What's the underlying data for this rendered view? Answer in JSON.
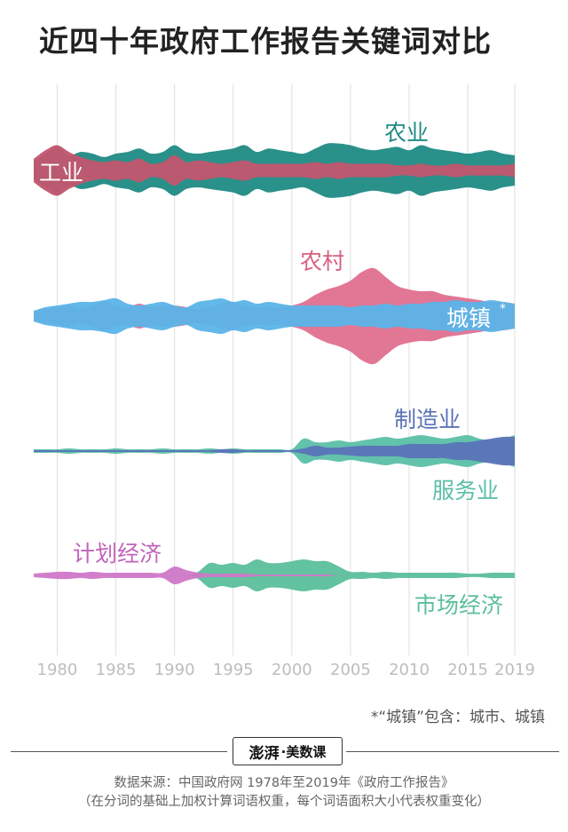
{
  "title": "近四十年政府工作报告关键词对比",
  "note": "*“城镇”包含：城市、城镇",
  "logo": {
    "mark": "澎湃",
    "sub": "·美数课"
  },
  "source": {
    "line1": "数据来源：中国政府网 1978年至2019年《政府工作报告》",
    "line2": "（在分词的基础上加权计算词语权重，每个词语面积大小代表权重变化）"
  },
  "chart_data": {
    "type": "area",
    "title": "近四十年政府工作报告关键词对比",
    "x": [
      1978,
      1979,
      1980,
      1981,
      1982,
      1983,
      1984,
      1985,
      1986,
      1987,
      1988,
      1989,
      1990,
      1991,
      1992,
      1993,
      1994,
      1995,
      1996,
      1997,
      1998,
      1999,
      2000,
      2001,
      2002,
      2003,
      2004,
      2005,
      2006,
      2007,
      2008,
      2009,
      2010,
      2011,
      2012,
      2013,
      2014,
      2015,
      2016,
      2017,
      2018,
      2019
    ],
    "x_ticks": [
      1980,
      1985,
      1990,
      1995,
      2000,
      2005,
      2010,
      2015,
      2019
    ],
    "groups": [
      {
        "series": [
          {
            "name": "农业",
            "color": "#1f8a84",
            "values": [
              10,
              20,
              28,
              18,
              22,
              20,
              16,
              20,
              22,
              26,
              20,
              22,
              30,
              22,
              20,
              22,
              24,
              26,
              30,
              22,
              26,
              24,
              22,
              20,
              26,
              32,
              32,
              30,
              26,
              24,
              26,
              28,
              24,
              30,
              26,
              24,
              22,
              20,
              22,
              24,
              20,
              18
            ]
          },
          {
            "name": "工业",
            "color": "#c2566e",
            "values": [
              14,
              24,
              30,
              22,
              16,
              12,
              10,
              12,
              10,
              14,
              8,
              10,
              18,
              10,
              12,
              10,
              8,
              10,
              12,
              8,
              8,
              8,
              8,
              8,
              10,
              8,
              10,
              8,
              8,
              8,
              8,
              6,
              6,
              8,
              6,
              6,
              8,
              6,
              6,
              6,
              6,
              8
            ]
          }
        ]
      },
      {
        "series": [
          {
            "name": "农村",
            "color": "#e0708f",
            "values": [
              6,
              8,
              10,
              12,
              8,
              12,
              16,
              12,
              10,
              14,
              10,
              12,
              12,
              10,
              8,
              10,
              14,
              16,
              12,
              10,
              10,
              10,
              12,
              16,
              24,
              30,
              34,
              40,
              50,
              54,
              44,
              34,
              30,
              28,
              28,
              24,
              22,
              20,
              18,
              16,
              16,
              14
            ]
          },
          {
            "name": "城镇",
            "color": "#5ab4e8",
            "values": [
              6,
              10,
              12,
              14,
              16,
              16,
              18,
              20,
              14,
              12,
              14,
              16,
              12,
              10,
              16,
              18,
              20,
              16,
              18,
              14,
              16,
              14,
              12,
              12,
              12,
              12,
              12,
              10,
              12,
              12,
              14,
              12,
              14,
              14,
              16,
              16,
              18,
              16,
              16,
              18,
              16,
              14
            ]
          }
        ]
      },
      {
        "series": [
          {
            "name": "服务业",
            "color": "#5bbfa7",
            "values": [
              2,
              2,
              2,
              3,
              2,
              2,
              2,
              3,
              2,
              2,
              2,
              3,
              2,
              2,
              2,
              3,
              2,
              3,
              2,
              2,
              2,
              2,
              2,
              14,
              10,
              10,
              12,
              10,
              12,
              14,
              16,
              14,
              16,
              18,
              16,
              14,
              16,
              18,
              14,
              12,
              14,
              18
            ]
          },
          {
            "name": "制造业",
            "color": "#5a73b8",
            "values": [
              1,
              1,
              1,
              1,
              1,
              1,
              1,
              1,
              1,
              1,
              1,
              1,
              1,
              1,
              1,
              1,
              2,
              2,
              1,
              1,
              1,
              1,
              1,
              3,
              6,
              4,
              4,
              5,
              6,
              6,
              6,
              6,
              8,
              8,
              8,
              8,
              10,
              10,
              12,
              14,
              16,
              16
            ]
          }
        ]
      },
      {
        "series": [
          {
            "name": "市场经济",
            "color": "#5bbf9a",
            "values": [
              0,
              0,
              0,
              0,
              0,
              0,
              0,
              0,
              0,
              0,
              0,
              0,
              0,
              0,
              4,
              14,
              12,
              14,
              12,
              18,
              14,
              14,
              16,
              18,
              16,
              16,
              10,
              4,
              4,
              3,
              4,
              3,
              3,
              3,
              3,
              3,
              3,
              2,
              2,
              3,
              3,
              3
            ]
          },
          {
            "name": "计划经济",
            "color": "#cf78c8",
            "values": [
              2,
              3,
              4,
              4,
              3,
              4,
              3,
              3,
              3,
              3,
              3,
              3,
              10,
              6,
              3,
              2,
              2,
              2,
              2,
              1,
              1,
              1,
              1,
              1,
              1,
              1,
              0,
              0,
              0,
              0,
              0,
              0,
              0,
              0,
              0,
              0,
              0,
              0,
              0,
              0,
              0,
              0
            ]
          }
        ]
      }
    ]
  }
}
